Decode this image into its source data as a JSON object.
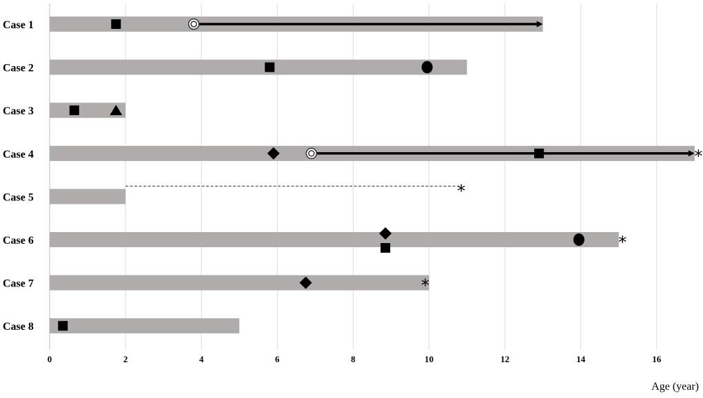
{
  "chart_data": {
    "type": "swimmer",
    "xlabel": "Age (year)",
    "xlim": [
      0,
      17
    ],
    "xticks": [
      "0",
      "2",
      "4",
      "6",
      "8",
      "10",
      "12",
      "14",
      "16"
    ],
    "grid": true,
    "bar_color": "#b0acab",
    "marker_color": "#000000",
    "cases": [
      {
        "label": "Case 1",
        "end": 13,
        "markers": [
          {
            "shape": "square",
            "x": 1.75
          },
          {
            "shape": "double-circle",
            "x": 3.8
          }
        ],
        "arrow": [
          3.8,
          13
        ]
      },
      {
        "label": "Case 2",
        "end": 11,
        "markers": [
          {
            "shape": "square",
            "x": 5.8
          },
          {
            "shape": "circle",
            "x": 9.95
          }
        ]
      },
      {
        "label": "Case 3",
        "end": 2,
        "markers": [
          {
            "shape": "square",
            "x": 0.65
          },
          {
            "shape": "triangle",
            "x": 1.75
          }
        ]
      },
      {
        "label": "Case 4",
        "end": 17,
        "markers": [
          {
            "shape": "diamond",
            "x": 5.9
          },
          {
            "shape": "double-circle",
            "x": 6.9
          },
          {
            "shape": "square",
            "x": 12.9
          },
          {
            "shape": "asterisk",
            "x": 17.1
          }
        ],
        "arrow": [
          6.9,
          17
        ]
      },
      {
        "label": "Case 5",
        "end": 2,
        "dashed": [
          2,
          10.8
        ],
        "markers": [
          {
            "shape": "asterisk",
            "x": 10.85,
            "pos": "above"
          }
        ]
      },
      {
        "label": "Case 6",
        "end": 15,
        "markers": [
          {
            "shape": "diamond",
            "x": 8.85,
            "pos": "upper"
          },
          {
            "shape": "square",
            "x": 8.85,
            "pos": "lower"
          },
          {
            "shape": "circle",
            "x": 13.95
          },
          {
            "shape": "asterisk",
            "x": 15.1
          }
        ]
      },
      {
        "label": "Case 7",
        "end": 10,
        "markers": [
          {
            "shape": "diamond",
            "x": 6.75
          },
          {
            "shape": "asterisk",
            "x": 9.9
          }
        ]
      },
      {
        "label": "Case 8",
        "end": 5,
        "markers": [
          {
            "shape": "square",
            "x": 0.35
          }
        ]
      }
    ]
  }
}
